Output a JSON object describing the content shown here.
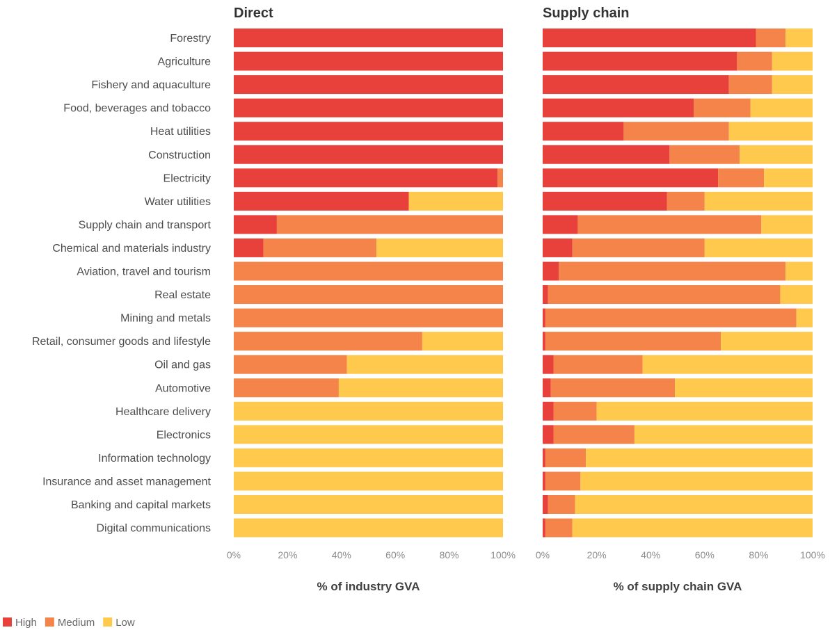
{
  "colors": {
    "high": "#e8413c",
    "medium": "#f4844a",
    "low": "#fec94d"
  },
  "legend": [
    {
      "key": "high",
      "label": "High"
    },
    {
      "key": "medium",
      "label": "Medium"
    },
    {
      "key": "low",
      "label": "Low"
    }
  ],
  "chart_data": [
    {
      "type": "bar",
      "orientation": "horizontal",
      "stacked": true,
      "title": "Direct",
      "xlabel": "% of industry GVA",
      "xlim": [
        0,
        100
      ],
      "xticks": [
        "0%",
        "20%",
        "40%",
        "60%",
        "80%",
        "100%"
      ],
      "categories": [
        "Forestry",
        "Agriculture",
        "Fishery and aquaculture",
        "Food, beverages and tobacco",
        "Heat utilities",
        "Construction",
        "Electricity",
        "Water utilities",
        "Supply chain and transport",
        "Chemical and materials industry",
        "Aviation, travel and tourism",
        "Real estate",
        "Mining and metals",
        "Retail, consumer goods and lifestyle",
        "Oil and gas",
        "Automotive",
        "Healthcare delivery",
        "Electronics",
        "Information technology",
        "Insurance and asset management",
        "Banking and capital markets",
        "Digital communications"
      ],
      "series": [
        {
          "name": "High",
          "key": "high",
          "values": [
            100,
            100,
            100,
            100,
            100,
            100,
            98,
            65,
            16,
            11,
            0,
            0,
            0,
            0,
            0,
            0,
            0,
            0,
            0,
            0,
            0,
            0
          ]
        },
        {
          "name": "Medium",
          "key": "medium",
          "values": [
            0,
            0,
            0,
            0,
            0,
            0,
            2,
            0,
            84,
            42,
            100,
            100,
            100,
            70,
            42,
            39,
            0,
            0,
            0,
            0,
            0,
            0
          ]
        },
        {
          "name": "Low",
          "key": "low",
          "values": [
            0,
            0,
            0,
            0,
            0,
            0,
            0,
            35,
            0,
            47,
            0,
            0,
            0,
            30,
            58,
            61,
            100,
            100,
            100,
            100,
            100,
            100
          ]
        }
      ]
    },
    {
      "type": "bar",
      "orientation": "horizontal",
      "stacked": true,
      "title": "Supply chain",
      "xlabel": "% of supply chain GVA",
      "xlim": [
        0,
        100
      ],
      "xticks": [
        "0%",
        "20%",
        "40%",
        "60%",
        "80%",
        "100%"
      ],
      "categories": [
        "Forestry",
        "Agriculture",
        "Fishery and aquaculture",
        "Food, beverages and tobacco",
        "Heat utilities",
        "Construction",
        "Electricity",
        "Water utilities",
        "Supply chain and transport",
        "Chemical and materials industry",
        "Aviation, travel and tourism",
        "Real estate",
        "Mining and metals",
        "Retail, consumer goods and lifestyle",
        "Oil and gas",
        "Automotive",
        "Healthcare delivery",
        "Electronics",
        "Information technology",
        "Insurance and asset management",
        "Banking and capital markets",
        "Digital communications"
      ],
      "series": [
        {
          "name": "High",
          "key": "high",
          "values": [
            79,
            72,
            69,
            56,
            30,
            47,
            65,
            46,
            13,
            11,
            6,
            2,
            1,
            1,
            4,
            3,
            4,
            4,
            1,
            1,
            2,
            1
          ]
        },
        {
          "name": "Medium",
          "key": "medium",
          "values": [
            11,
            13,
            16,
            21,
            39,
            26,
            17,
            14,
            68,
            49,
            84,
            86,
            93,
            65,
            33,
            46,
            16,
            30,
            15,
            13,
            10,
            10
          ]
        },
        {
          "name": "Low",
          "key": "low",
          "values": [
            10,
            15,
            15,
            23,
            31,
            27,
            18,
            40,
            19,
            40,
            10,
            12,
            6,
            34,
            63,
            51,
            80,
            66,
            84,
            86,
            88,
            89
          ]
        }
      ]
    }
  ]
}
